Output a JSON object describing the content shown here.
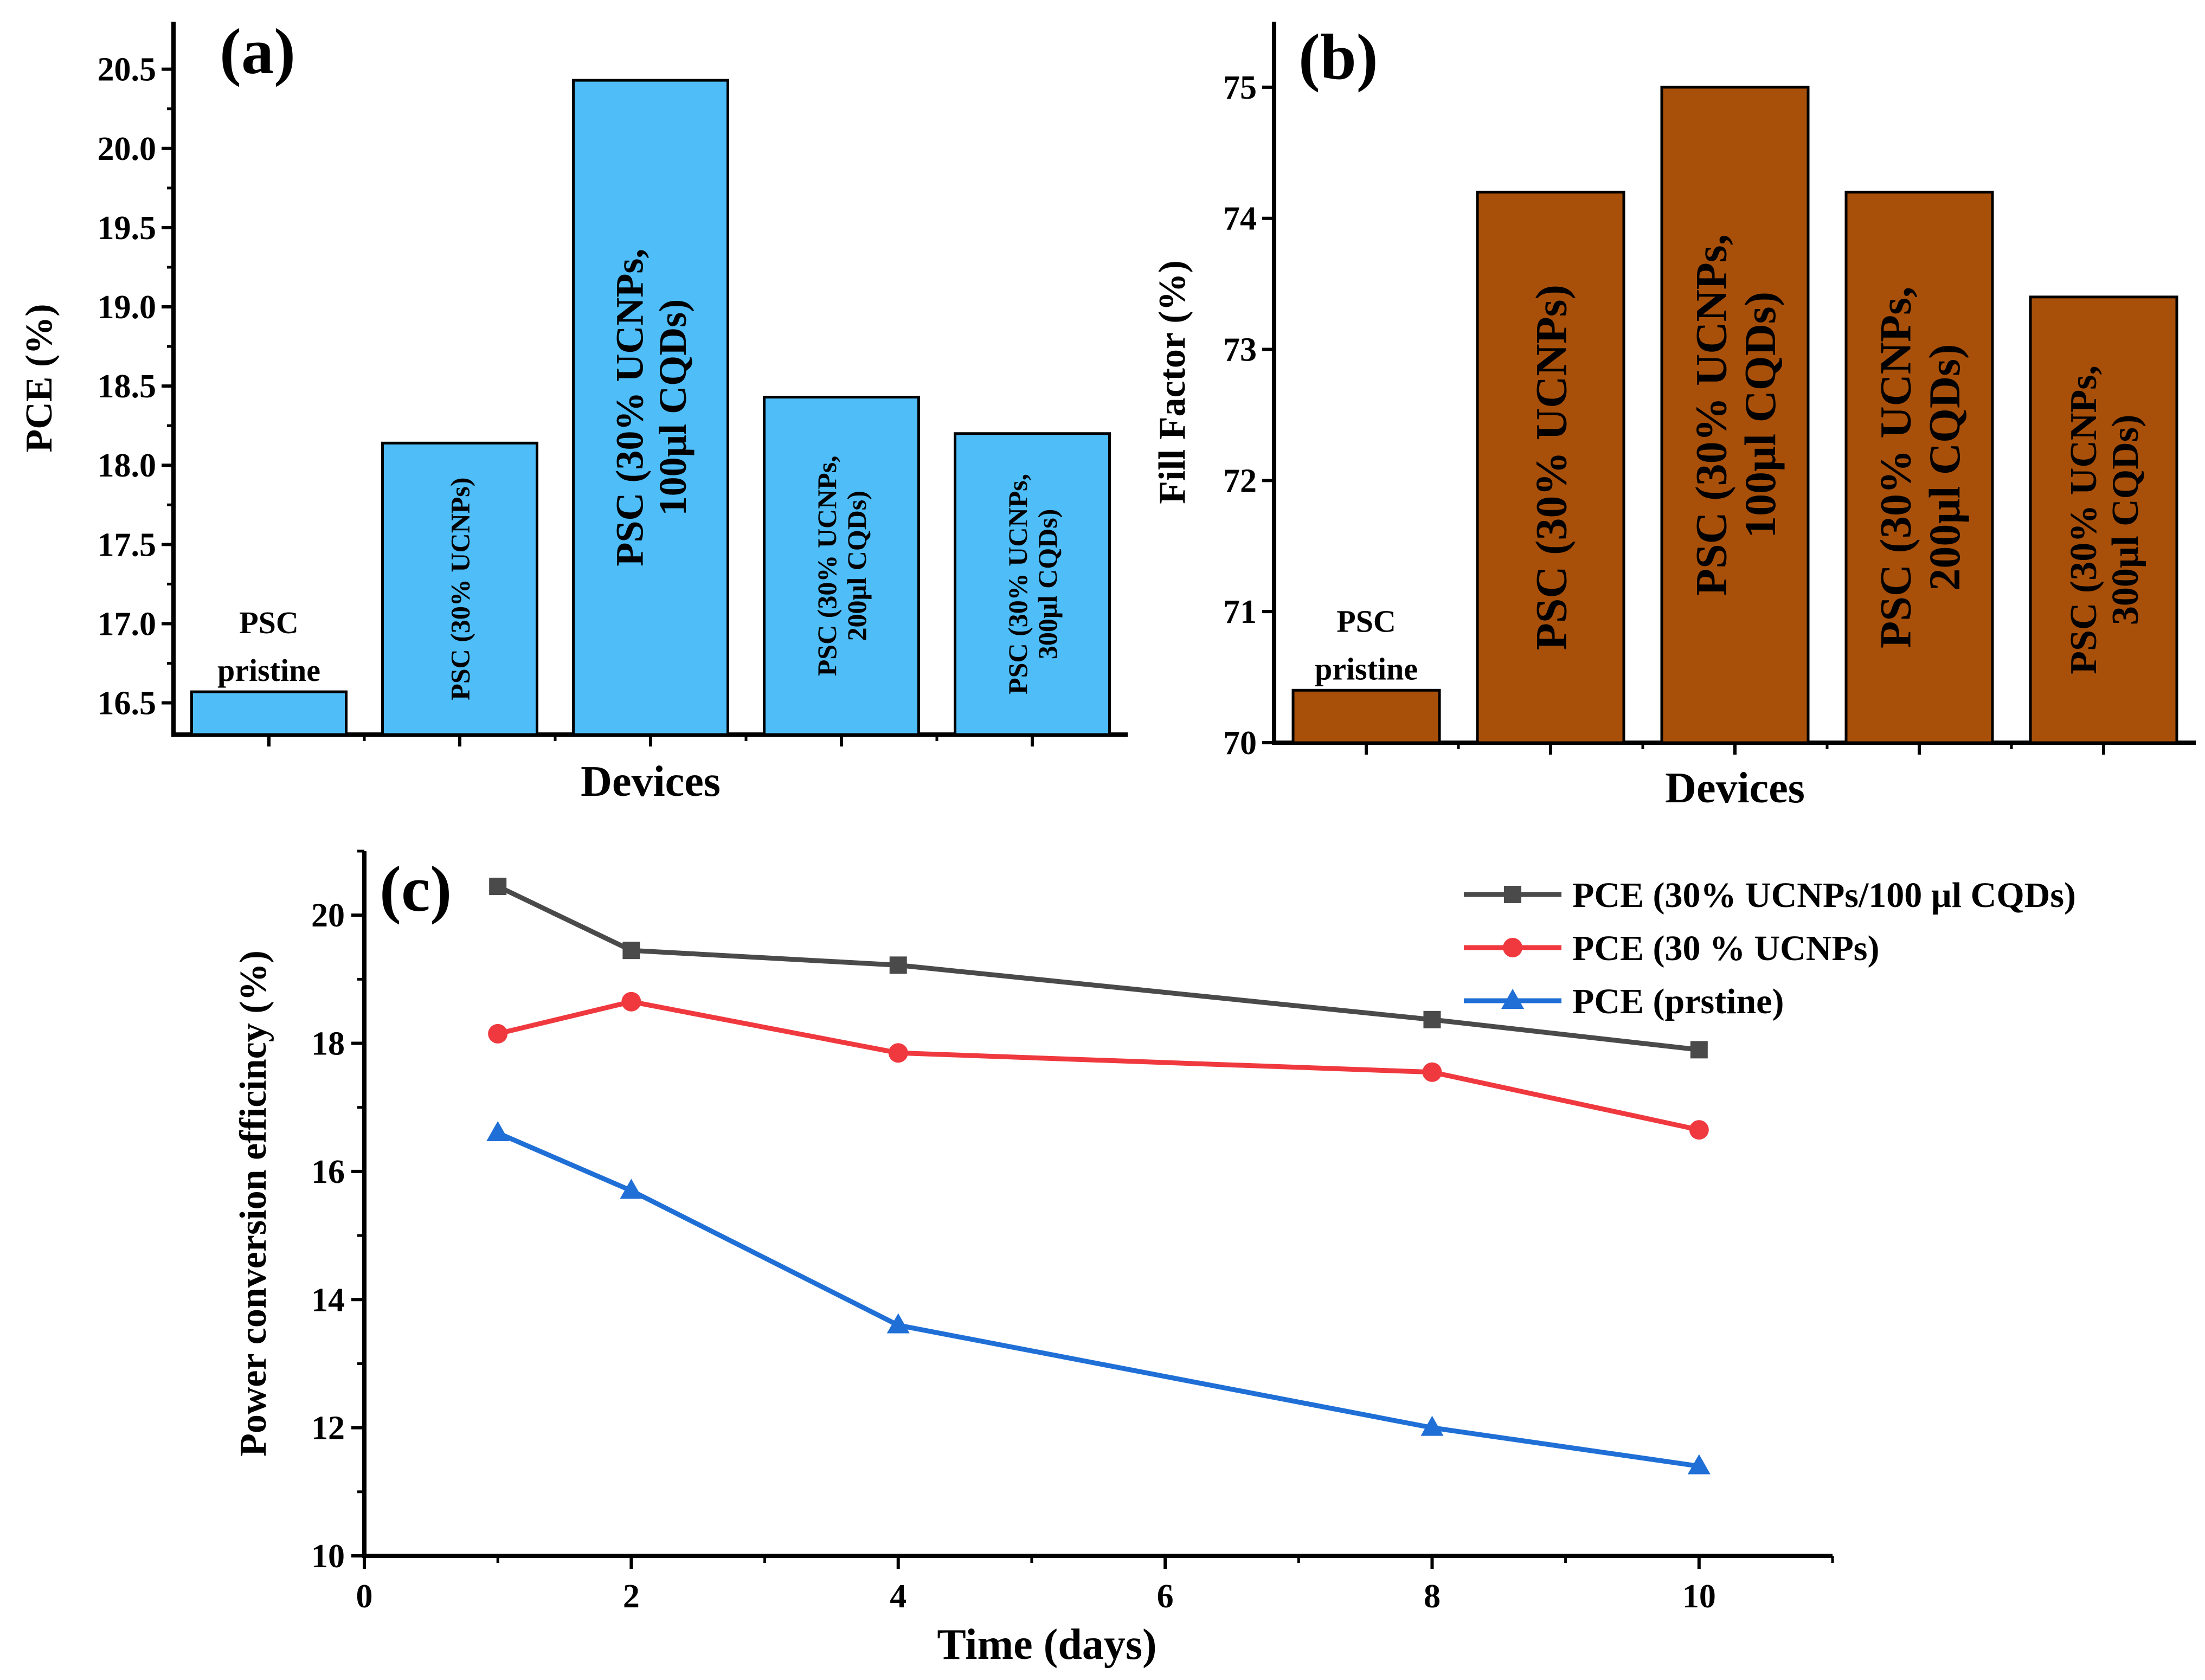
{
  "chart_data": [
    {
      "panel_label": "(a)",
      "type": "bar",
      "xlabel": "Devices",
      "ylabel": "PCE (%)",
      "ylim": [
        16.3,
        20.8
      ],
      "yticks": [
        "16.5",
        "17.0",
        "17.5",
        "18.0",
        "18.5",
        "19.0",
        "19.5",
        "20.0",
        "20.5"
      ],
      "bar_color": "#4FBDF7",
      "categories": [
        {
          "lines": [
            "PSC",
            "pristine"
          ],
          "placement": "above"
        },
        {
          "lines": [
            "PSC (30% UCNPs)"
          ],
          "placement": "inside"
        },
        {
          "lines": [
            "PSC (30% UCNPs,",
            "100µl CQDs)"
          ],
          "placement": "inside"
        },
        {
          "lines": [
            "PSC (30% UCNPs,",
            "200µl CQDs)"
          ],
          "placement": "inside"
        },
        {
          "lines": [
            "PSC (30% UCNPs,",
            "300µl CQDs)"
          ],
          "placement": "inside"
        }
      ],
      "values": [
        16.57,
        18.14,
        20.43,
        18.43,
        18.2
      ]
    },
    {
      "panel_label": "(b)",
      "type": "bar",
      "xlabel": "Devices",
      "ylabel": "Fill Factor (%)",
      "ylim": [
        70,
        75.5
      ],
      "yticks": [
        "70",
        "71",
        "72",
        "73",
        "74",
        "75"
      ],
      "bar_color": "#A8500A",
      "categories": [
        {
          "lines": [
            "PSC",
            "pristine"
          ],
          "placement": "above"
        },
        {
          "lines": [
            "PSC (30% UCNPs)"
          ],
          "placement": "inside"
        },
        {
          "lines": [
            "PSC (30% UCNPs,",
            "100µl CQDs)"
          ],
          "placement": "inside"
        },
        {
          "lines": [
            "PSC (30% UCNPs,",
            "200µl CQDs)"
          ],
          "placement": "inside"
        },
        {
          "lines": [
            "PSC (30% UCNPs,",
            "300µl CQDs)"
          ],
          "placement": "inside"
        }
      ],
      "values": [
        70.4,
        74.2,
        75.0,
        74.2,
        73.4
      ]
    },
    {
      "panel_label": "(c)",
      "type": "line",
      "xlabel": "Time (days)",
      "ylabel": "Power conversion efficincy (%)",
      "xlim": [
        0,
        11
      ],
      "ylim": [
        10,
        21
      ],
      "xticks": [
        "0",
        "2",
        "4",
        "6",
        "8",
        "10"
      ],
      "yticks": [
        "10",
        "12",
        "14",
        "16",
        "18",
        "20"
      ],
      "series": [
        {
          "name": "PCE (30% UCNPs/100 µl CQDs)",
          "color": "#4A4A4A",
          "marker": "square",
          "x": [
            1,
            2,
            4,
            8,
            10
          ],
          "y": [
            20.45,
            19.45,
            19.22,
            18.37,
            17.9
          ]
        },
        {
          "name": "PCE (30 % UCNPs)",
          "color": "#F0393F",
          "marker": "circle",
          "x": [
            1,
            2,
            4,
            8,
            10
          ],
          "y": [
            18.15,
            18.65,
            17.85,
            17.55,
            16.65
          ]
        },
        {
          "name": "PCE (prstine)",
          "color": "#1F6FD6",
          "marker": "triangle",
          "x": [
            1,
            2,
            4,
            8,
            10
          ],
          "y": [
            16.6,
            15.7,
            13.6,
            12.0,
            11.4
          ]
        }
      ]
    }
  ]
}
